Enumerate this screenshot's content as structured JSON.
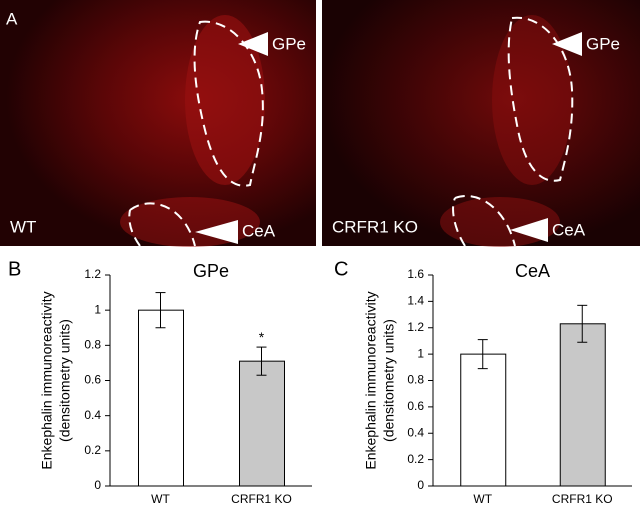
{
  "panel_label": "A",
  "images": [
    {
      "label": "WT",
      "regions": [
        "GPe",
        "CeA"
      ]
    },
    {
      "label": "CRFR1 KO",
      "regions": [
        "GPe",
        "CeA"
      ]
    }
  ],
  "chart_data": [
    {
      "type": "bar",
      "panel_label": "B",
      "title": "GPe",
      "ylabel": [
        "Enkephalin immunoreactivity",
        "(densitometry units)"
      ],
      "categories": [
        "WT",
        "CRFR1 KO"
      ],
      "values": [
        1.0,
        0.71
      ],
      "errors": [
        0.1,
        0.08
      ],
      "colors": [
        "#ffffff",
        "#c8c8c8"
      ],
      "annotation": "*",
      "ylim": [
        0,
        1.2
      ],
      "yticks": [
        0,
        0.2,
        0.4,
        0.6,
        0.8,
        1,
        1.2
      ]
    },
    {
      "type": "bar",
      "panel_label": "C",
      "title": "CeA",
      "ylabel": [
        "Enkephalin immunoreactivity",
        "(densitometry units)"
      ],
      "categories": [
        "WT",
        "CRFR1 KO"
      ],
      "values": [
        1.0,
        1.23
      ],
      "errors": [
        0.11,
        0.14
      ],
      "colors": [
        "#ffffff",
        "#c8c8c8"
      ],
      "ylim": [
        0,
        1.6
      ],
      "yticks": [
        0,
        0.2,
        0.4,
        0.6,
        0.8,
        1,
        1.2,
        1.4,
        1.6
      ]
    }
  ]
}
